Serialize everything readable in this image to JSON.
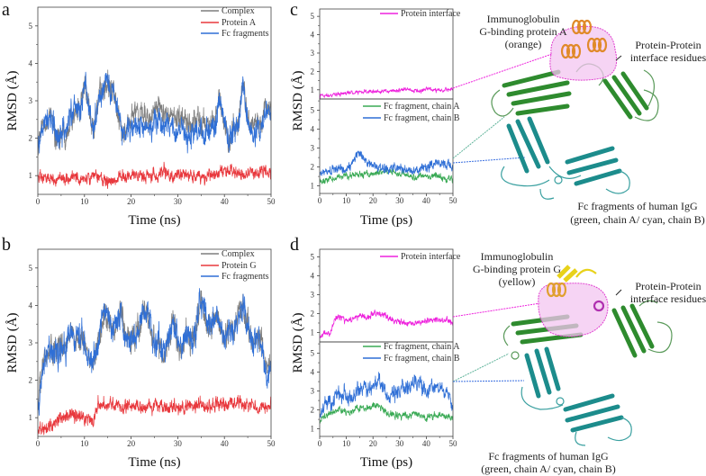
{
  "panel_labels": {
    "a": "a",
    "b": "b",
    "c": "c",
    "d": "d"
  },
  "annotations": {
    "top": {
      "binding_protein": [
        "Immunoglobulin",
        "G-binding protein A",
        "(orange)"
      ],
      "interface": [
        "Protein-Protein",
        "interface residues"
      ],
      "fc": [
        "Fc fragments of human IgG",
        "(green, chain A/ cyan, chain B)"
      ]
    },
    "bottom": {
      "binding_protein": [
        "Immunoglobulin",
        "G-binding protein G",
        "(yellow)"
      ],
      "interface": [
        "Protein-Protein",
        "interface residues"
      ],
      "fc": [
        "Fc fragments of human IgG",
        "(green, chain A/ cyan, chain B)"
      ]
    }
  },
  "colors": {
    "complex": "#7f7f7f",
    "protein": "#e8383d",
    "fc": "#2f6fd6",
    "interface": "#ee22dd",
    "chainA": "#3aaa55",
    "chainB": "#2f6fd6"
  },
  "chart_data": [
    {
      "panel": "a",
      "type": "line",
      "xlabel": "Time (ns)",
      "ylabel": "RMSD (Å)",
      "xlim": [
        0,
        50
      ],
      "ylim": [
        0.5,
        5.5
      ],
      "xticks": [
        0,
        10,
        20,
        30,
        40,
        50
      ],
      "yticks": [
        1,
        2,
        3,
        4,
        5
      ],
      "x_step": 1,
      "subplots": [
        {
          "ylim": [
            0.5,
            5.5
          ],
          "yticks": [
            1,
            2,
            3,
            4,
            5
          ],
          "series": [
            {
              "name": "Complex",
              "color": "#7f7f7f",
              "noise": 0.35,
              "values": [
                1.8,
                2.3,
                2.4,
                2.6,
                1.9,
                2.2,
                2.1,
                2.6,
                2.8,
                2.6,
                3.5,
                2.8,
                2.2,
                3.0,
                3.3,
                3.5,
                3.2,
                2.8,
                2.1,
                2.2,
                2.6,
                2.7,
                2.6,
                2.6,
                2.5,
                2.7,
                2.8,
                2.7,
                2.7,
                2.6,
                2.4,
                2.6,
                2.3,
                2.4,
                2.5,
                2.5,
                2.3,
                2.5,
                2.4,
                3.2,
                2.4,
                1.8,
                2.4,
                2.3,
                3.5,
                2.5,
                2.3,
                2.4,
                2.4,
                2.9,
                2.7
              ]
            },
            {
              "name": "Protein A",
              "color": "#e8383d",
              "noise": 0.18,
              "values": [
                0.9,
                0.95,
                0.95,
                0.9,
                0.9,
                0.95,
                0.9,
                0.95,
                0.95,
                0.9,
                0.9,
                0.95,
                0.95,
                0.95,
                0.9,
                0.9,
                0.85,
                0.9,
                1.0,
                1.0,
                0.95,
                1.0,
                1.0,
                1.0,
                1.0,
                1.0,
                1.05,
                1.25,
                1.05,
                1.0,
                1.0,
                1.0,
                1.0,
                1.0,
                1.0,
                0.95,
                0.95,
                1.0,
                1.05,
                1.1,
                1.1,
                1.15,
                1.1,
                1.05,
                1.05,
                1.1,
                1.1,
                1.1,
                1.15,
                1.1,
                1.1
              ]
            },
            {
              "name": "Fc fragments",
              "color": "#2f6fd6",
              "noise": 0.35,
              "values": [
                1.8,
                2.3,
                2.4,
                2.6,
                1.9,
                2.2,
                2.1,
                2.6,
                2.8,
                2.6,
                3.5,
                2.8,
                2.2,
                3.0,
                3.3,
                3.5,
                3.2,
                2.8,
                2.1,
                2.2,
                2.3,
                2.4,
                2.3,
                2.3,
                2.2,
                2.4,
                2.5,
                2.4,
                2.4,
                2.3,
                2.1,
                2.3,
                2.0,
                2.1,
                2.2,
                2.2,
                2.0,
                2.2,
                2.2,
                3.2,
                2.4,
                1.8,
                2.3,
                2.2,
                3.5,
                2.3,
                2.1,
                2.2,
                2.2,
                2.7,
                2.6
              ]
            }
          ]
        }
      ]
    },
    {
      "panel": "b",
      "type": "line",
      "xlabel": "Time (ns)",
      "ylabel": "RMSD (Å)",
      "xlim": [
        0,
        50
      ],
      "ylim": [
        0.5,
        5.5
      ],
      "xticks": [
        0,
        10,
        20,
        30,
        40,
        50
      ],
      "yticks": [
        1,
        2,
        3,
        4,
        5
      ],
      "x_step": 1,
      "subplots": [
        {
          "ylim": [
            0.5,
            5.5
          ],
          "yticks": [
            1,
            2,
            3,
            4,
            5
          ],
          "series": [
            {
              "name": "Complex",
              "color": "#7f7f7f",
              "noise": 0.4,
              "values": [
                1.2,
                2.3,
                2.7,
                2.8,
                2.8,
                3.0,
                2.8,
                3.4,
                3.0,
                3.2,
                3.0,
                2.5,
                2.6,
                3.0,
                3.8,
                3.6,
                3.3,
                3.5,
                3.7,
                3.0,
                3.2,
                3.1,
                3.5,
                4.0,
                3.6,
                3.0,
                3.0,
                2.7,
                3.1,
                3.6,
                3.0,
                2.8,
                3.3,
                3.0,
                3.5,
                4.1,
                3.7,
                3.4,
                3.8,
                3.4,
                3.0,
                3.4,
                3.3,
                3.7,
                4.0,
                3.5,
                3.0,
                3.2,
                3.0,
                2.2,
                2.5
              ]
            },
            {
              "name": "Protein G",
              "color": "#e8383d",
              "noise": 0.2,
              "values": [
                0.65,
                0.7,
                0.7,
                0.75,
                0.95,
                1.0,
                1.0,
                1.05,
                1.0,
                1.0,
                1.0,
                0.95,
                0.95,
                1.35,
                1.35,
                1.35,
                1.35,
                1.3,
                1.3,
                1.3,
                1.3,
                1.3,
                1.3,
                1.3,
                1.3,
                1.3,
                1.3,
                1.25,
                1.3,
                1.3,
                1.25,
                1.25,
                1.3,
                1.3,
                1.3,
                1.3,
                1.3,
                1.3,
                1.35,
                1.35,
                1.35,
                1.35,
                1.35,
                1.35,
                1.35,
                1.35,
                1.35,
                1.3,
                1.3,
                1.3,
                1.3
              ]
            },
            {
              "name": "Fc fragments",
              "color": "#2f6fd6",
              "noise": 0.4,
              "values": [
                1.2,
                2.3,
                2.7,
                2.8,
                2.8,
                3.0,
                2.8,
                3.4,
                3.0,
                3.2,
                3.0,
                2.5,
                2.6,
                3.0,
                3.8,
                3.6,
                3.3,
                3.5,
                3.7,
                3.0,
                3.2,
                3.1,
                3.5,
                4.0,
                3.6,
                3.0,
                3.0,
                2.7,
                3.1,
                3.6,
                3.0,
                2.8,
                3.3,
                3.0,
                3.5,
                4.1,
                3.7,
                3.4,
                3.8,
                3.4,
                3.0,
                3.4,
                3.3,
                3.7,
                4.0,
                3.5,
                3.0,
                3.2,
                3.0,
                2.2,
                2.5
              ]
            }
          ]
        }
      ]
    },
    {
      "panel": "c",
      "type": "line",
      "xlabel": "Time (ps)",
      "ylabel": "RMSD (Å)",
      "xlim": [
        0,
        50
      ],
      "xticks": [
        0,
        10,
        20,
        30,
        40,
        50
      ],
      "x_step": 2,
      "subplots": [
        {
          "ylim": [
            0.5,
            5.4
          ],
          "yticks": [
            1,
            2,
            3,
            4,
            5
          ],
          "series": [
            {
              "name": "Protein interface",
              "color": "#ee22dd",
              "noise": 0.12,
              "values": [
                0.65,
                0.7,
                0.72,
                0.75,
                0.8,
                0.8,
                0.85,
                0.85,
                0.85,
                0.9,
                0.9,
                0.9,
                0.9,
                0.95,
                0.95,
                0.95,
                1.0,
                1.0,
                0.95,
                0.9,
                1.1,
                1.0,
                0.95,
                1.0,
                1.0,
                1.05
              ]
            }
          ]
        },
        {
          "ylim": [
            0.6,
            5.6
          ],
          "yticks": [
            1,
            2,
            3,
            4,
            5
          ],
          "series": [
            {
              "name": "Fc fragment, chain A",
              "color": "#3aaa55",
              "noise": 0.2,
              "values": [
                1.3,
                1.3,
                1.35,
                1.4,
                1.45,
                1.5,
                1.55,
                1.65,
                1.7,
                1.6,
                1.6,
                1.75,
                1.8,
                1.75,
                1.7,
                1.6,
                1.6,
                1.5,
                1.45,
                1.6,
                1.55,
                1.5,
                1.5,
                1.4,
                1.35,
                1.3
              ]
            },
            {
              "name": "Fc fragment, chain B",
              "color": "#2f6fd6",
              "noise": 0.28,
              "values": [
                1.8,
                1.75,
                1.8,
                1.9,
                1.9,
                1.9,
                2.1,
                2.7,
                2.5,
                2.2,
                2.0,
                2.0,
                1.9,
                1.9,
                2.0,
                2.0,
                1.8,
                1.8,
                1.85,
                1.9,
                2.0,
                2.1,
                2.3,
                2.2,
                2.1,
                2.1
              ]
            }
          ]
        }
      ]
    },
    {
      "panel": "d",
      "type": "line",
      "xlabel": "Time (ps)",
      "ylabel": "RMSD (Å)",
      "xlim": [
        0,
        50
      ],
      "xticks": [
        0,
        10,
        20,
        30,
        40,
        50
      ],
      "x_step": 2,
      "subplots": [
        {
          "ylim": [
            0.5,
            5.4
          ],
          "yticks": [
            1,
            2,
            3,
            4,
            5
          ],
          "series": [
            {
              "name": "Protein interface",
              "color": "#ee22dd",
              "noise": 0.18,
              "values": [
                0.85,
                0.9,
                1.0,
                1.7,
                1.8,
                1.6,
                1.7,
                1.8,
                1.9,
                1.8,
                2.0,
                2.0,
                1.9,
                1.7,
                1.6,
                1.6,
                1.5,
                1.5,
                1.5,
                1.55,
                1.6,
                1.6,
                1.6,
                1.65,
                1.6,
                1.5
              ]
            }
          ]
        },
        {
          "ylim": [
            0.6,
            5.6
          ],
          "yticks": [
            1,
            2,
            3,
            4,
            5
          ],
          "series": [
            {
              "name": "Fc fragment, chain A",
              "color": "#3aaa55",
              "noise": 0.2,
              "values": [
                1.4,
                1.7,
                1.8,
                2.0,
                2.0,
                1.9,
                1.9,
                2.1,
                2.1,
                2.1,
                2.2,
                2.2,
                2.0,
                1.8,
                1.7,
                1.7,
                1.7,
                1.7,
                1.8,
                1.7,
                1.6,
                1.7,
                1.7,
                1.7,
                1.7,
                1.6
              ]
            },
            {
              "name": "Fc fragment, chain B",
              "color": "#2f6fd6",
              "noise": 0.45,
              "values": [
                1.5,
                2.4,
                2.5,
                2.6,
                2.9,
                2.8,
                2.6,
                3.0,
                3.2,
                3.0,
                3.3,
                3.5,
                3.0,
                2.6,
                2.9,
                3.1,
                3.0,
                3.3,
                3.6,
                3.4,
                2.9,
                3.2,
                3.3,
                3.0,
                2.8,
                2.2
              ]
            }
          ]
        }
      ]
    }
  ]
}
